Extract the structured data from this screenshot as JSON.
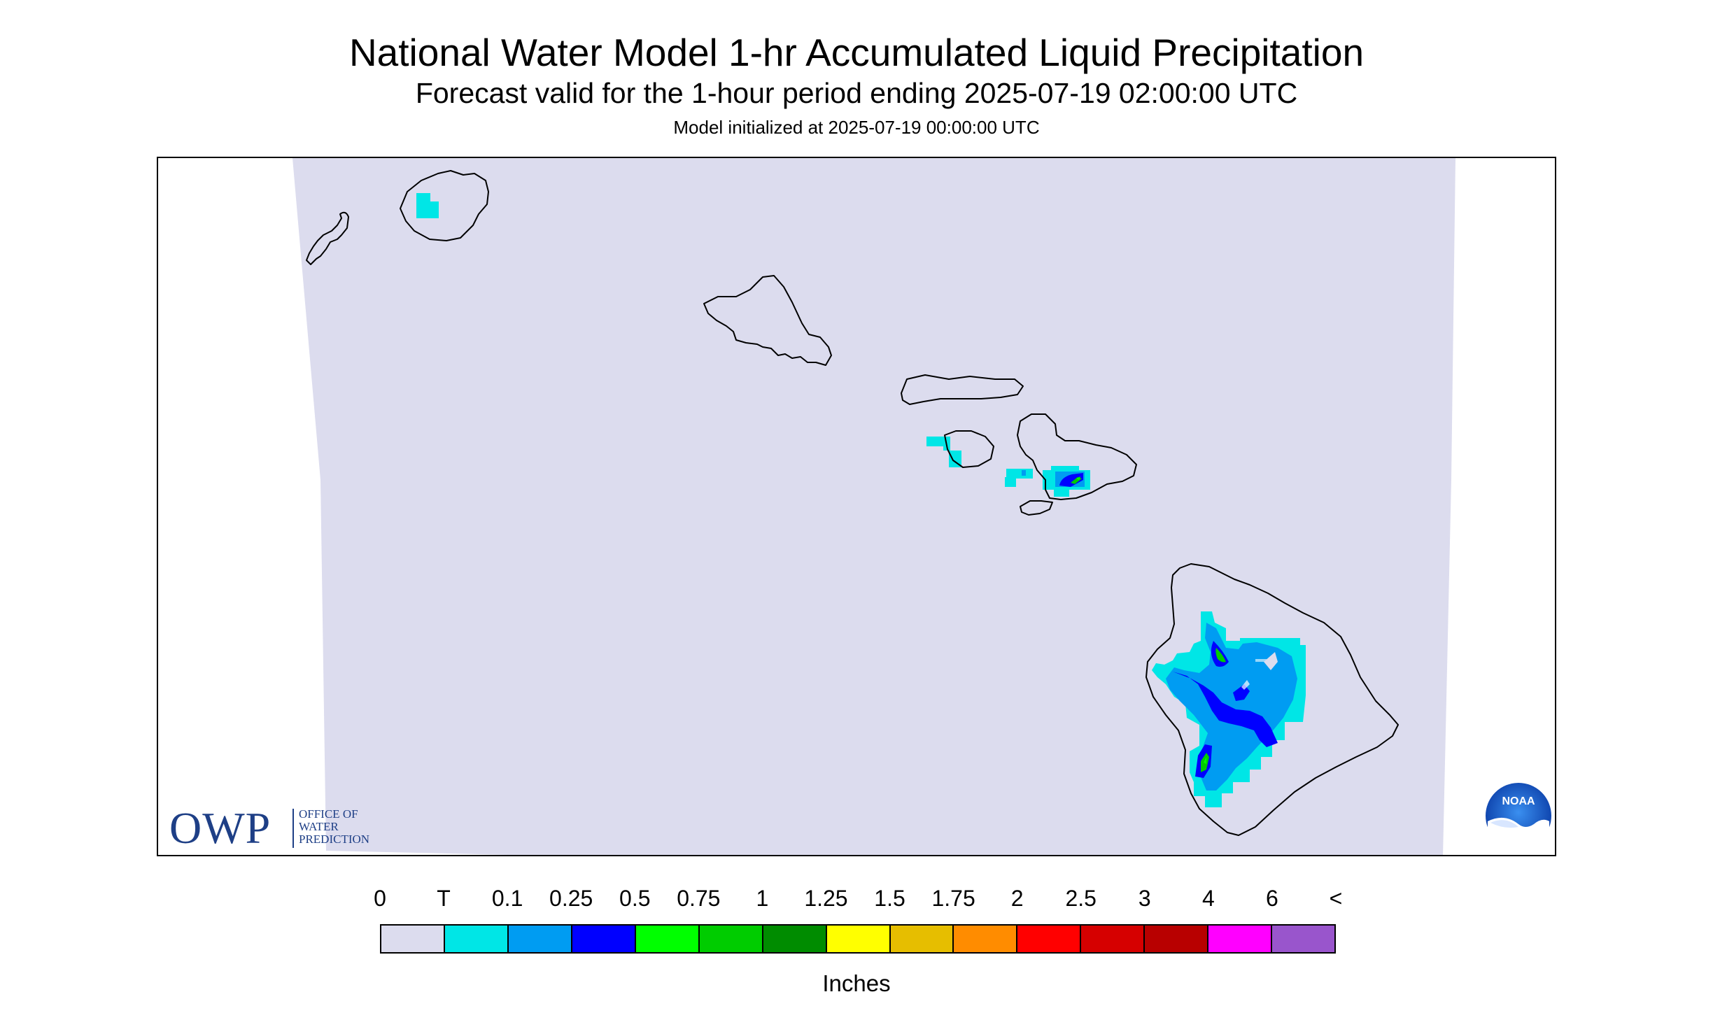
{
  "header": {
    "title": "National Water Model 1-hr Accumulated Liquid Precipitation",
    "subtitle": "Forecast valid for the 1-hour period ending 2025-07-19 02:00:00 UTC",
    "init_line": "Model initialized at 2025-07-19 00:00:00 UTC"
  },
  "map": {
    "background_color": "#dcdcee",
    "region": "Hawaiian Islands",
    "islands": [
      "Niihau",
      "Kauai",
      "Oahu",
      "Molokai",
      "Lanai",
      "Maui",
      "Kahoolawe",
      "Hawaii"
    ]
  },
  "logos": {
    "owp": {
      "abbr": "OWP",
      "line1": "OFFICE OF",
      "line2": "WATER",
      "line3": "PREDICTION",
      "color": "#1e3f86"
    },
    "noaa": {
      "text": "NOAA"
    }
  },
  "legend": {
    "labels": [
      "0",
      "T",
      "0.1",
      "0.25",
      "0.5",
      "0.75",
      "1",
      "1.25",
      "1.5",
      "1.75",
      "2",
      "2.5",
      "3",
      "4",
      "6",
      "<"
    ],
    "colors": [
      "#dcdcee",
      "#00e6e6",
      "#009cf2",
      "#0000ff",
      "#00ff00",
      "#00cc00",
      "#008c00",
      "#ffff00",
      "#e6be00",
      "#ff8c00",
      "#ff0000",
      "#d60000",
      "#b80000",
      "#ff00ff",
      "#9955cc"
    ],
    "units": "Inches"
  }
}
